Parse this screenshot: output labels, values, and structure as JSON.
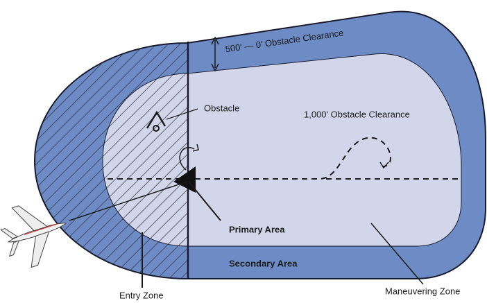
{
  "labels": {
    "secondary_clearance": "500' — 0' Obstacle Clearance",
    "obstacle": "Obstacle",
    "primary_clearance": "1,000' Obstacle Clearance",
    "primary_area": "Primary Area",
    "secondary_area": "Secondary Area",
    "entry_zone": "Entry Zone",
    "maneuvering_zone": "Maneuvering Zone"
  }
}
